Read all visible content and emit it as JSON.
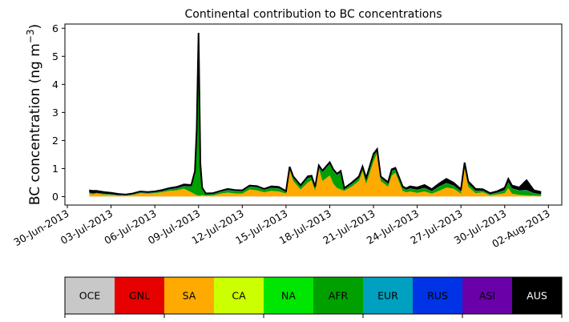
{
  "chart_data": {
    "type": "area",
    "stacked": true,
    "title": "Continental contribution to BC concentrations",
    "ylabel_main": "BC concentration (ng m",
    "ylabel_sup": "−3",
    "ylabel_close": ")",
    "xlabel": "",
    "ylim": [
      -0.3,
      6.15
    ],
    "yticks": [
      0,
      1,
      2,
      3,
      4,
      5,
      6
    ],
    "xlim": [
      "2013-06-29T20:00",
      "2013-08-02T22:00"
    ],
    "xticks": [
      "2013-06-30",
      "2013-07-03",
      "2013-07-06",
      "2013-07-09",
      "2013-07-12",
      "2013-07-15",
      "2013-07-18",
      "2013-07-21",
      "2013-07-24",
      "2013-07-27",
      "2013-07-30",
      "2013-08-02"
    ],
    "xtick_labels": [
      "30-Jun-2013",
      "03-Jul-2013",
      "06-Jul-2013",
      "09-Jul-2013",
      "12-Jul-2013",
      "15-Jul-2013",
      "18-Jul-2013",
      "21-Jul-2013",
      "24-Jul-2013",
      "27-Jul-2013",
      "30-Jul-2013",
      "02-Aug-2013"
    ],
    "grid": false,
    "x": [
      "2013-07-01T12:00",
      "2013-07-01T18:00",
      "2013-07-02T00:00",
      "2013-07-02T12:00",
      "2013-07-03T00:00",
      "2013-07-03T12:00",
      "2013-07-04T00:00",
      "2013-07-04T12:00",
      "2013-07-05T00:00",
      "2013-07-05T12:00",
      "2013-07-06T00:00",
      "2013-07-06T12:00",
      "2013-07-07T00:00",
      "2013-07-07T12:00",
      "2013-07-08T00:00",
      "2013-07-08T12:00",
      "2013-07-08T18:00",
      "2013-07-08T21:00",
      "2013-07-09T00:00",
      "2013-07-09T03:00",
      "2013-07-09T06:00",
      "2013-07-09T12:00",
      "2013-07-10T00:00",
      "2013-07-10T12:00",
      "2013-07-11T00:00",
      "2013-07-11T12:00",
      "2013-07-12T00:00",
      "2013-07-12T12:00",
      "2013-07-13T00:00",
      "2013-07-13T12:00",
      "2013-07-14T00:00",
      "2013-07-14T12:00",
      "2013-07-15T00:00",
      "2013-07-15T06:00",
      "2013-07-15T12:00",
      "2013-07-16T00:00",
      "2013-07-16T12:00",
      "2013-07-16T18:00",
      "2013-07-17T00:00",
      "2013-07-17T06:00",
      "2013-07-17T12:00",
      "2013-07-18T00:00",
      "2013-07-18T06:00",
      "2013-07-18T12:00",
      "2013-07-18T18:00",
      "2013-07-19T00:00",
      "2013-07-19T12:00",
      "2013-07-20T00:00",
      "2013-07-20T06:00",
      "2013-07-20T12:00",
      "2013-07-21T00:00",
      "2013-07-21T06:00",
      "2013-07-21T12:00",
      "2013-07-22T00:00",
      "2013-07-22T06:00",
      "2013-07-22T12:00",
      "2013-07-23T00:00",
      "2013-07-23T06:00",
      "2013-07-23T12:00",
      "2013-07-24T00:00",
      "2013-07-24T12:00",
      "2013-07-25T00:00",
      "2013-07-25T12:00",
      "2013-07-26T00:00",
      "2013-07-26T12:00",
      "2013-07-27T00:00",
      "2013-07-27T06:00",
      "2013-07-27T12:00",
      "2013-07-28T00:00",
      "2013-07-28T12:00",
      "2013-07-29T00:00",
      "2013-07-29T12:00",
      "2013-07-30T00:00",
      "2013-07-30T06:00",
      "2013-07-30T12:00",
      "2013-07-31T00:00",
      "2013-07-31T12:00",
      "2013-08-01T00:00",
      "2013-08-01T12:00"
    ],
    "series": [
      {
        "name": "OCE",
        "color": "#c8c8c8",
        "values": [
          0.005,
          0.005,
          0.005,
          0.005,
          0.005,
          0.005,
          0.005,
          0.005,
          0.005,
          0.005,
          0.005,
          0.005,
          0.005,
          0.005,
          0.005,
          0.005,
          0.005,
          0.005,
          0.005,
          0.005,
          0.005,
          0.005,
          0.005,
          0.005,
          0.005,
          0.005,
          0.005,
          0.005,
          0.005,
          0.005,
          0.005,
          0.005,
          0.005,
          0.005,
          0.005,
          0.005,
          0.005,
          0.005,
          0.005,
          0.005,
          0.005,
          0.005,
          0.005,
          0.005,
          0.005,
          0.005,
          0.005,
          0.005,
          0.005,
          0.005,
          0.005,
          0.005,
          0.005,
          0.005,
          0.005,
          0.005,
          0.005,
          0.005,
          0.005,
          0.005,
          0.005,
          0.005,
          0.005,
          0.005,
          0.005,
          0.005,
          0.005,
          0.005,
          0.005,
          0.005,
          0.005,
          0.005,
          0.005,
          0.005,
          0.005,
          0.005,
          0.005,
          0.005,
          0.005
        ]
      },
      {
        "name": "GNL",
        "color": "#e60000",
        "values": [
          0,
          0,
          0,
          0,
          0,
          0,
          0,
          0,
          0,
          0,
          0,
          0,
          0,
          0,
          0,
          0,
          0,
          0,
          0,
          0,
          0,
          0,
          0,
          0,
          0,
          0,
          0,
          0,
          0,
          0,
          0,
          0,
          0,
          0,
          0,
          0,
          0,
          0,
          0,
          0,
          0,
          0,
          0,
          0,
          0,
          0,
          0,
          0,
          0,
          0,
          0,
          0,
          0,
          0,
          0,
          0,
          0,
          0,
          0,
          0,
          0,
          0,
          0,
          0,
          0,
          0,
          0,
          0,
          0,
          0,
          0,
          0,
          0,
          0,
          0,
          0,
          0,
          0,
          0
        ]
      },
      {
        "name": "SA",
        "color": "#ffaa00",
        "values": [
          0.1,
          0.08,
          0.1,
          0.07,
          0.06,
          0.03,
          0.03,
          0.06,
          0.12,
          0.1,
          0.12,
          0.15,
          0.2,
          0.22,
          0.28,
          0.15,
          0.08,
          0.05,
          0.03,
          0.03,
          0.05,
          0.03,
          0.04,
          0.1,
          0.14,
          0.11,
          0.1,
          0.25,
          0.22,
          0.15,
          0.2,
          0.18,
          0.1,
          0.95,
          0.55,
          0.25,
          0.5,
          0.58,
          0.2,
          1.0,
          0.55,
          0.75,
          0.45,
          0.3,
          0.25,
          0.2,
          0.35,
          0.55,
          0.9,
          0.45,
          1.25,
          1.55,
          0.55,
          0.35,
          0.75,
          0.85,
          0.2,
          0.15,
          0.18,
          0.13,
          0.18,
          0.1,
          0.2,
          0.32,
          0.28,
          0.1,
          1.0,
          0.35,
          0.12,
          0.15,
          0.04,
          0.08,
          0.12,
          0.3,
          0.1,
          0.06,
          0.04,
          0.03,
          0.02
        ]
      },
      {
        "name": "CA",
        "color": "#ccff00",
        "values": [
          0,
          0,
          0,
          0,
          0,
          0,
          0,
          0,
          0,
          0,
          0,
          0,
          0,
          0,
          0,
          0,
          0,
          0,
          0,
          0,
          0,
          0,
          0,
          0,
          0,
          0,
          0,
          0,
          0,
          0,
          0,
          0,
          0,
          0,
          0,
          0,
          0,
          0,
          0,
          0,
          0,
          0,
          0,
          0,
          0,
          0,
          0,
          0,
          0,
          0,
          0,
          0,
          0,
          0,
          0,
          0,
          0,
          0,
          0,
          0,
          0,
          0,
          0,
          0,
          0,
          0,
          0,
          0,
          0,
          0,
          0,
          0,
          0,
          0,
          0,
          0,
          0,
          0,
          0
        ]
      },
      {
        "name": "NA",
        "color": "#00e600",
        "values": [
          0,
          0,
          0,
          0,
          0,
          0,
          0,
          0,
          0,
          0,
          0,
          0,
          0,
          0,
          0,
          0,
          0,
          0,
          0,
          0,
          0,
          0,
          0,
          0,
          0,
          0,
          0,
          0,
          0,
          0,
          0,
          0,
          0,
          0,
          0,
          0,
          0,
          0,
          0,
          0,
          0,
          0,
          0,
          0,
          0,
          0,
          0,
          0,
          0,
          0,
          0,
          0,
          0,
          0,
          0,
          0,
          0,
          0,
          0,
          0,
          0,
          0,
          0,
          0,
          0,
          0,
          0,
          0,
          0,
          0,
          0,
          0,
          0,
          0,
          0,
          0,
          0,
          0,
          0
        ]
      },
      {
        "name": "AFR",
        "color": "#00a000",
        "values": [
          0.03,
          0.02,
          0.02,
          0.02,
          0.01,
          0.01,
          0.01,
          0.02,
          0.02,
          0.02,
          0.02,
          0.03,
          0.05,
          0.06,
          0.08,
          0.2,
          0.7,
          2.0,
          5.3,
          1.0,
          0.2,
          0.05,
          0.05,
          0.06,
          0.08,
          0.08,
          0.08,
          0.1,
          0.1,
          0.08,
          0.1,
          0.1,
          0.05,
          0.05,
          0.1,
          0.1,
          0.15,
          0.1,
          0.1,
          0.05,
          0.3,
          0.4,
          0.45,
          0.45,
          0.6,
          0.05,
          0.08,
          0.1,
          0.1,
          0.15,
          0.2,
          0.05,
          0.1,
          0.1,
          0.15,
          0.1,
          0.1,
          0.08,
          0.1,
          0.1,
          0.12,
          0.08,
          0.15,
          0.15,
          0.1,
          0.08,
          0.1,
          0.1,
          0.08,
          0.05,
          0.03,
          0.05,
          0.1,
          0.2,
          0.18,
          0.15,
          0.18,
          0.08,
          0.05
        ]
      },
      {
        "name": "EUR",
        "color": "#00a0c0",
        "values": [
          0.01,
          0.01,
          0.01,
          0.01,
          0.01,
          0.01,
          0.01,
          0.01,
          0.01,
          0.01,
          0.01,
          0.01,
          0.01,
          0.01,
          0.01,
          0.01,
          0.02,
          0.05,
          0.1,
          0.05,
          0.02,
          0.01,
          0.01,
          0.01,
          0.01,
          0.01,
          0.01,
          0.01,
          0.01,
          0.01,
          0.01,
          0.01,
          0.01,
          0.01,
          0.01,
          0.01,
          0.01,
          0.01,
          0.01,
          0.01,
          0.01,
          0.01,
          0.01,
          0.01,
          0.01,
          0.01,
          0.01,
          0.01,
          0.01,
          0.01,
          0.01,
          0.01,
          0.01,
          0.01,
          0.01,
          0.01,
          0.01,
          0.01,
          0.01,
          0.01,
          0.01,
          0.01,
          0.01,
          0.01,
          0.01,
          0.01,
          0.01,
          0.01,
          0.01,
          0.01,
          0.01,
          0.01,
          0.01,
          0.01,
          0.01,
          0.01,
          0.01,
          0.01,
          0.01
        ]
      },
      {
        "name": "RUS",
        "color": "#0033e6",
        "values": [
          0,
          0,
          0,
          0,
          0,
          0,
          0,
          0,
          0,
          0,
          0,
          0,
          0,
          0,
          0,
          0,
          0,
          0,
          0,
          0,
          0,
          0,
          0,
          0,
          0,
          0,
          0,
          0,
          0,
          0,
          0,
          0,
          0,
          0,
          0,
          0,
          0,
          0,
          0,
          0,
          0,
          0,
          0,
          0,
          0,
          0,
          0,
          0,
          0,
          0,
          0,
          0,
          0,
          0,
          0,
          0,
          0,
          0,
          0,
          0,
          0,
          0,
          0,
          0,
          0,
          0,
          0,
          0,
          0,
          0,
          0,
          0,
          0,
          0,
          0,
          0,
          0,
          0,
          0
        ]
      },
      {
        "name": "ASI",
        "color": "#6a00a8",
        "values": [
          0,
          0,
          0,
          0,
          0,
          0,
          0,
          0,
          0,
          0,
          0,
          0,
          0,
          0,
          0,
          0,
          0,
          0,
          0,
          0,
          0,
          0,
          0,
          0,
          0,
          0,
          0,
          0,
          0,
          0,
          0,
          0,
          0,
          0,
          0,
          0,
          0,
          0,
          0,
          0,
          0,
          0,
          0,
          0,
          0,
          0,
          0,
          0,
          0,
          0,
          0,
          0,
          0,
          0,
          0,
          0,
          0,
          0,
          0,
          0,
          0,
          0,
          0,
          0,
          0,
          0,
          0,
          0,
          0,
          0,
          0,
          0,
          0,
          0,
          0,
          0,
          0,
          0,
          0
        ]
      },
      {
        "name": "AUS",
        "color": "#000000",
        "values": [
          0.08,
          0.09,
          0.07,
          0.06,
          0.05,
          0.04,
          0.02,
          0.02,
          0.03,
          0.03,
          0.03,
          0.04,
          0.04,
          0.05,
          0.06,
          0.05,
          0.1,
          0.3,
          0.4,
          0.1,
          0.04,
          0.02,
          0.02,
          0.03,
          0.04,
          0.03,
          0.03,
          0.03,
          0.04,
          0.03,
          0.05,
          0.05,
          0.03,
          0.05,
          0.05,
          0.04,
          0.06,
          0.05,
          0.04,
          0.05,
          0.06,
          0.06,
          0.05,
          0.05,
          0.05,
          0.04,
          0.05,
          0.05,
          0.06,
          0.05,
          0.06,
          0.08,
          0.05,
          0.05,
          0.06,
          0.06,
          0.05,
          0.05,
          0.07,
          0.08,
          0.1,
          0.07,
          0.1,
          0.15,
          0.1,
          0.07,
          0.1,
          0.08,
          0.06,
          0.05,
          0.04,
          0.05,
          0.08,
          0.12,
          0.1,
          0.1,
          0.35,
          0.1,
          0.08
        ]
      }
    ],
    "legend": [
      "OCE",
      "GNL",
      "SA",
      "CA",
      "NA",
      "AFR",
      "EUR",
      "RUS",
      "ASI",
      "AUS"
    ],
    "legend_placement": "bottom colorbar"
  }
}
